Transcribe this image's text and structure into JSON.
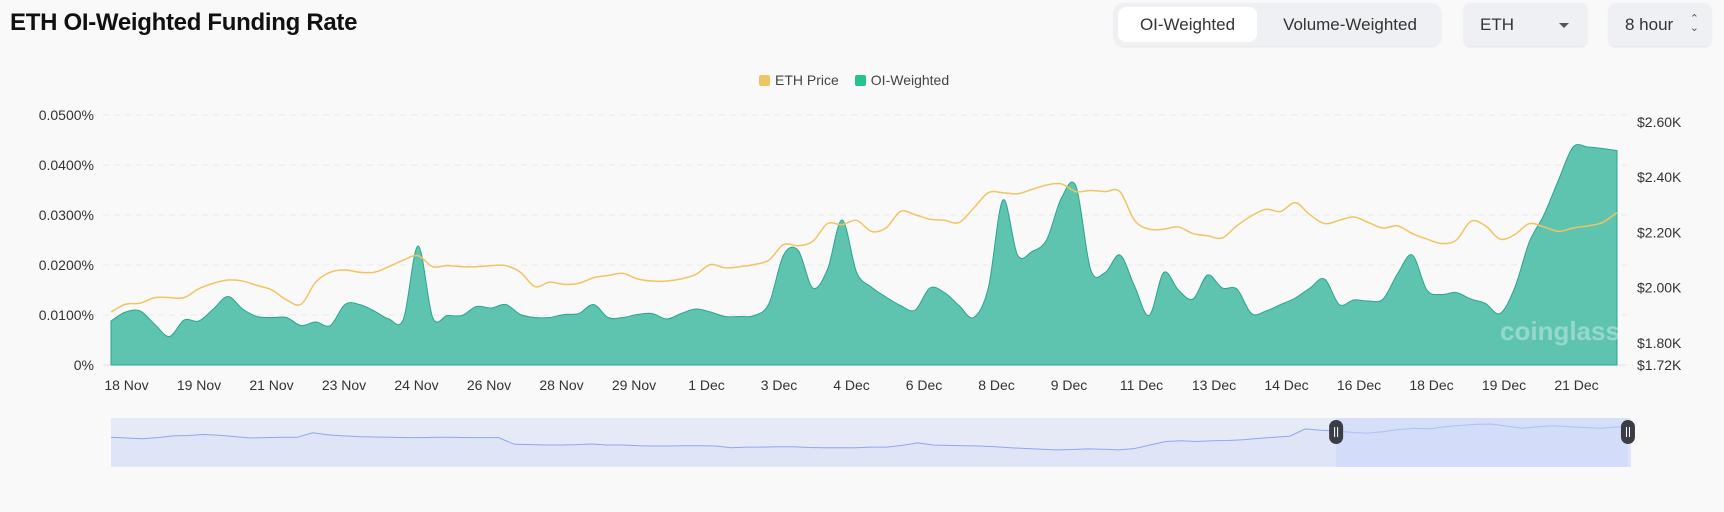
{
  "header": {
    "title": "ETH OI-Weighted Funding Rate",
    "toggle": [
      "OI-Weighted",
      "Volume-Weighted"
    ],
    "toggle_active": 0,
    "coin_select": "ETH",
    "interval_select": "8 hour"
  },
  "legend": [
    {
      "label": "ETH Price",
      "color": "#f0c462"
    },
    {
      "label": "OI-Weighted",
      "color": "#22c48f"
    }
  ],
  "watermark": "coinglass",
  "chart_data": {
    "type": "area",
    "x_ticks": [
      "18 Nov",
      "19 Nov",
      "21 Nov",
      "23 Nov",
      "24 Nov",
      "26 Nov",
      "28 Nov",
      "29 Nov",
      "1 Dec",
      "3 Dec",
      "4 Dec",
      "6 Dec",
      "8 Dec",
      "9 Dec",
      "11 Dec",
      "13 Dec",
      "14 Dec",
      "16 Dec",
      "18 Dec",
      "19 Dec",
      "21 Dec"
    ],
    "interval": "8 hour",
    "y_left": {
      "ticks": [
        "0%",
        "0.0100%",
        "0.0200%",
        "0.0300%",
        "0.0400%",
        "0.0500%"
      ],
      "range": [
        0,
        0.05
      ],
      "unit": "%"
    },
    "y_right": {
      "ticks": [
        "$1.72K",
        "$1.80K",
        "$2.00K",
        "$2.20K",
        "$2.40K",
        "$2.60K"
      ],
      "range": [
        1720,
        2600
      ],
      "unit": "USD"
    },
    "grid": true,
    "legend_position": "top-center",
    "series": [
      {
        "name": "OI-Weighted",
        "axis": "left",
        "type": "area",
        "color": "#5ec4b0",
        "values": [
          0.0088,
          0.0106,
          0.0108,
          0.0081,
          0.0057,
          0.009,
          0.0088,
          0.0112,
          0.0137,
          0.0112,
          0.0097,
          0.0095,
          0.0095,
          0.0079,
          0.0086,
          0.0079,
          0.0121,
          0.0121,
          0.0108,
          0.0092,
          0.0092,
          0.0238,
          0.0095,
          0.0099,
          0.0099,
          0.0117,
          0.0114,
          0.0121,
          0.0101,
          0.0095,
          0.0095,
          0.0101,
          0.0103,
          0.0121,
          0.0095,
          0.0095,
          0.0101,
          0.0103,
          0.0092,
          0.0103,
          0.0112,
          0.0106,
          0.0097,
          0.0097,
          0.0099,
          0.0123,
          0.022,
          0.0229,
          0.0154,
          0.0191,
          0.029,
          0.0185,
          0.0156,
          0.0136,
          0.0119,
          0.011,
          0.0154,
          0.0145,
          0.0119,
          0.0095,
          0.0154,
          0.033,
          0.022,
          0.0227,
          0.0251,
          0.0334,
          0.0357,
          0.0191,
          0.0185,
          0.022,
          0.0158,
          0.0099,
          0.0185,
          0.015,
          0.0132,
          0.018,
          0.0154,
          0.0152,
          0.0103,
          0.0108,
          0.0121,
          0.0134,
          0.0154,
          0.0172,
          0.0121,
          0.013,
          0.0128,
          0.0132,
          0.0183,
          0.022,
          0.015,
          0.0141,
          0.0145,
          0.0132,
          0.0123,
          0.0103,
          0.0154,
          0.0246,
          0.03,
          0.037,
          0.0436,
          0.0436,
          0.0433,
          0.0429
        ]
      },
      {
        "name": "ETH Price",
        "axis": "right",
        "type": "line",
        "color": "#f0c462",
        "values": [
          1912,
          1940,
          1944,
          1964,
          1964,
          1964,
          1996,
          2016,
          2028,
          2024,
          2008,
          1992,
          1956,
          1940,
          2020,
          2056,
          2064,
          2056,
          2056,
          2076,
          2100,
          2116,
          2076,
          2080,
          2076,
          2076,
          2080,
          2080,
          2056,
          2004,
          2020,
          2012,
          2016,
          2036,
          2044,
          2052,
          2032,
          2024,
          2024,
          2032,
          2048,
          2084,
          2072,
          2076,
          2084,
          2100,
          2156,
          2152,
          2168,
          2232,
          2228,
          2244,
          2204,
          2216,
          2276,
          2264,
          2248,
          2244,
          2236,
          2288,
          2344,
          2344,
          2340,
          2356,
          2372,
          2376,
          2348,
          2352,
          2348,
          2348,
          2244,
          2212,
          2212,
          2220,
          2196,
          2188,
          2180,
          2224,
          2260,
          2284,
          2276,
          2308,
          2264,
          2232,
          2244,
          2256,
          2236,
          2216,
          2224,
          2196,
          2176,
          2160,
          2172,
          2240,
          2224,
          2176,
          2192,
          2232,
          2220,
          2204,
          2216,
          2224,
          2236,
          2272
        ]
      }
    ],
    "navigator": {
      "series_level": [
        62,
        60,
        58,
        61,
        66,
        67,
        70,
        68,
        64,
        60,
        61,
        62,
        62,
        75,
        69,
        66,
        64,
        63,
        62,
        61,
        61,
        62,
        62,
        61,
        61,
        61,
        42,
        41,
        40,
        40,
        41,
        43,
        40,
        40,
        38,
        37,
        37,
        38,
        38,
        37,
        32,
        34,
        34,
        35,
        35,
        33,
        32,
        32,
        32,
        34,
        34,
        39,
        46,
        40,
        39,
        38,
        37,
        35,
        32,
        30,
        28,
        26,
        27,
        29,
        28,
        26,
        30,
        40,
        50,
        52,
        50,
        52,
        53,
        55,
        59,
        62,
        65,
        86,
        82,
        80,
        76,
        74,
        78,
        84,
        88,
        86,
        92,
        96,
        99,
        100,
        94,
        88,
        92,
        95,
        92,
        90,
        88,
        91,
        94
      ],
      "selection": [
        0.806,
        0.998
      ]
    }
  }
}
